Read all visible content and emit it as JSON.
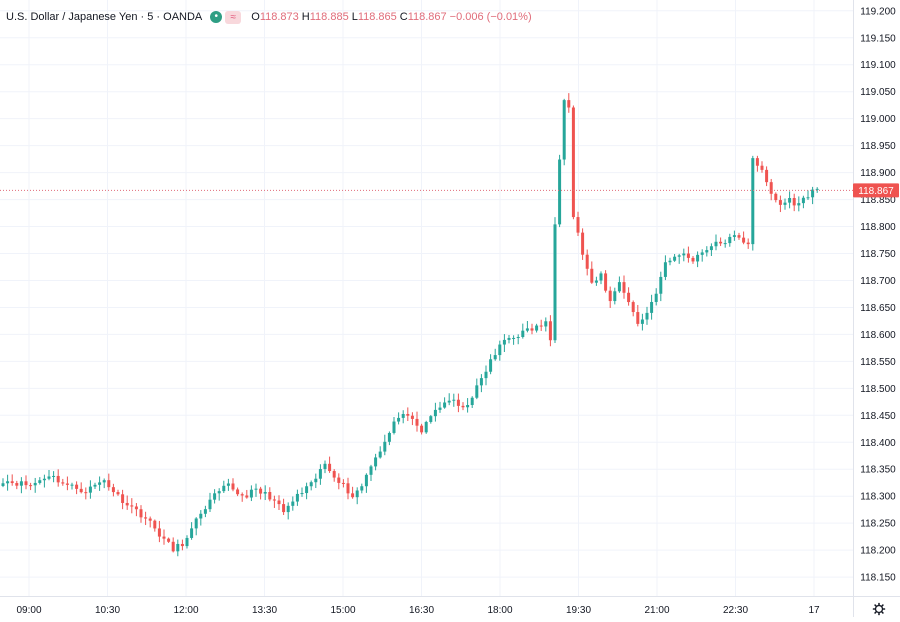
{
  "header": {
    "title": "U.S. Dollar / Japanese Yen · 5 · OANDA",
    "icons": [
      "status-dot-icon",
      "compare-icon"
    ],
    "compare_symbol": "≈",
    "ohlc": [
      {
        "label": "O",
        "value": "118.873"
      },
      {
        "label": "H",
        "value": "118.885"
      },
      {
        "label": "L",
        "value": "118.865"
      },
      {
        "label": "C",
        "value": "118.867"
      }
    ],
    "change": "−0.006 (−0.01%)"
  },
  "chart_data": {
    "type": "candlestick",
    "x_ticks": [
      "09:00",
      "10:30",
      "12:00",
      "13:30",
      "15:00",
      "16:30",
      "18:00",
      "19:30",
      "21:00",
      "22:30",
      "17"
    ],
    "y_ticks": [
      "119.200",
      "119.150",
      "119.100",
      "119.050",
      "119.000",
      "118.950",
      "118.900",
      "118.850",
      "118.800",
      "118.750",
      "118.700",
      "118.650",
      "118.600",
      "118.550",
      "118.500",
      "118.450",
      "118.400",
      "118.350",
      "118.300",
      "118.250",
      "118.200",
      "118.150"
    ],
    "ylim": [
      118.115,
      119.22
    ],
    "last_price": "118.867",
    "last_price_value": 118.867,
    "colors": {
      "up": "#26a69a",
      "down": "#ef5350",
      "price_label": "#ef5350",
      "grid": "#f0f3fa",
      "axis_text": "#131722"
    },
    "anchors": [
      [
        0,
        118.33
      ],
      [
        6,
        118.32
      ],
      [
        10,
        118.34
      ],
      [
        14,
        118.32
      ],
      [
        18,
        118.31
      ],
      [
        22,
        118.33
      ],
      [
        25,
        118.3
      ],
      [
        28,
        118.28
      ],
      [
        31,
        118.26
      ],
      [
        34,
        118.23
      ],
      [
        37,
        118.2
      ],
      [
        40,
        118.22
      ],
      [
        43,
        118.27
      ],
      [
        46,
        118.3
      ],
      [
        49,
        118.32
      ],
      [
        52,
        118.3
      ],
      [
        55,
        118.31
      ],
      [
        58,
        118.3
      ],
      [
        61,
        118.27
      ],
      [
        64,
        118.3
      ],
      [
        67,
        118.32
      ],
      [
        70,
        118.36
      ],
      [
        73,
        118.33
      ],
      [
        76,
        118.3
      ],
      [
        78,
        118.32
      ],
      [
        80,
        118.36
      ],
      [
        83,
        118.4
      ],
      [
        86,
        118.45
      ],
      [
        89,
        118.44
      ],
      [
        91,
        118.42
      ],
      [
        94,
        118.46
      ],
      [
        97,
        118.48
      ],
      [
        100,
        118.46
      ],
      [
        103,
        118.5
      ],
      [
        106,
        118.55
      ],
      [
        109,
        118.59
      ],
      [
        112,
        118.6
      ],
      [
        115,
        118.61
      ],
      [
        118,
        118.62
      ],
      [
        119,
        118.59
      ],
      [
        120,
        118.81
      ],
      [
        121,
        118.93
      ],
      [
        122,
        119.04
      ],
      [
        123,
        119.02
      ],
      [
        124,
        118.82
      ],
      [
        126,
        118.75
      ],
      [
        128,
        118.69
      ],
      [
        130,
        118.71
      ],
      [
        132,
        118.66
      ],
      [
        134,
        118.7
      ],
      [
        136,
        118.66
      ],
      [
        138,
        118.62
      ],
      [
        140,
        118.64
      ],
      [
        142,
        118.68
      ],
      [
        144,
        118.73
      ],
      [
        147,
        118.75
      ],
      [
        150,
        118.74
      ],
      [
        153,
        118.76
      ],
      [
        156,
        118.77
      ],
      [
        159,
        118.78
      ],
      [
        162,
        118.77
      ],
      [
        163,
        118.93
      ],
      [
        165,
        118.9
      ],
      [
        167,
        118.86
      ],
      [
        169,
        118.84
      ],
      [
        171,
        118.85
      ],
      [
        173,
        118.84
      ],
      [
        175,
        118.86
      ],
      [
        177,
        118.87
      ]
    ]
  }
}
